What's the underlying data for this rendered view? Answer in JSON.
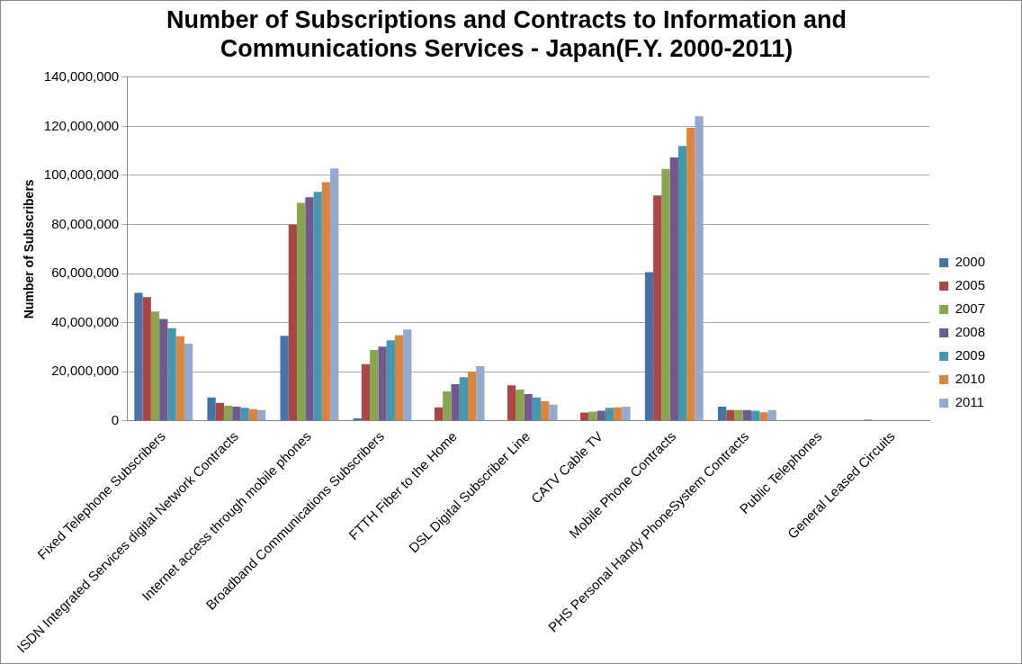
{
  "chart_data": {
    "type": "bar",
    "title": "Number of Subscriptions and Contracts to Information and Communications Services - Japan(F.Y. 2000-2011)",
    "ylabel": "Number of Subscribers",
    "categories": [
      "Fixed Telephone Subscribers",
      "ISDN Integrated Services digital Network Contracts",
      "Internet access through mobile phones",
      "Broadband Communications Subscribers",
      "FTTH Fiber to the Home",
      "DSL Digital Subscriber Line",
      "CATV Cable TV",
      "Mobile Phone Contracts",
      "PHS Personal Handy PhoneSystem Contracts",
      "Public Telephones",
      "General Leased Circuits"
    ],
    "series": [
      {
        "name": "2000",
        "color": "#4572a7",
        "values": [
          52100000,
          9500000,
          34600000,
          1000000,
          null,
          null,
          null,
          60600000,
          5800000,
          null,
          500000
        ]
      },
      {
        "name": "2005",
        "color": "#aa4643",
        "values": [
          50400000,
          7300000,
          79900000,
          23100000,
          5500000,
          14500000,
          3400000,
          91800000,
          4400000,
          null,
          null
        ]
      },
      {
        "name": "2007",
        "color": "#89a54e",
        "values": [
          44500000,
          6100000,
          88800000,
          28900000,
          12000000,
          12700000,
          3800000,
          102600000,
          4400000,
          null,
          null
        ]
      },
      {
        "name": "2008",
        "color": "#71588f",
        "values": [
          41500000,
          5800000,
          91100000,
          30200000,
          14900000,
          10900000,
          4100000,
          107300000,
          4400000,
          null,
          null
        ]
      },
      {
        "name": "2009",
        "color": "#4198af",
        "values": [
          37800000,
          5300000,
          93300000,
          32800000,
          17800000,
          9500000,
          5300000,
          112000000,
          4100000,
          null,
          null
        ]
      },
      {
        "name": "2010",
        "color": "#db843d",
        "values": [
          34500000,
          4800000,
          97200000,
          34900000,
          20100000,
          8000000,
          5500000,
          119400000,
          3500000,
          null,
          null
        ]
      },
      {
        "name": "2011",
        "color": "#93a9cf",
        "values": [
          31400000,
          4400000,
          102800000,
          37200000,
          22300000,
          6600000,
          5800000,
          124100000,
          4400000,
          null,
          null
        ]
      }
    ],
    "ylim": [
      0,
      140000000
    ],
    "yticks": [
      {
        "value": 0,
        "label": "0"
      },
      {
        "value": 20000000,
        "label": "20,000,000"
      },
      {
        "value": 40000000,
        "label": "40,000,000"
      },
      {
        "value": 60000000,
        "label": "60,000,000"
      },
      {
        "value": 80000000,
        "label": "80,000,000"
      },
      {
        "value": 100000000,
        "label": "100,000,000"
      },
      {
        "value": 120000000,
        "label": "120,000,000"
      },
      {
        "value": 140000000,
        "label": "140,000,000"
      }
    ],
    "grid": "y",
    "legend": "right"
  }
}
